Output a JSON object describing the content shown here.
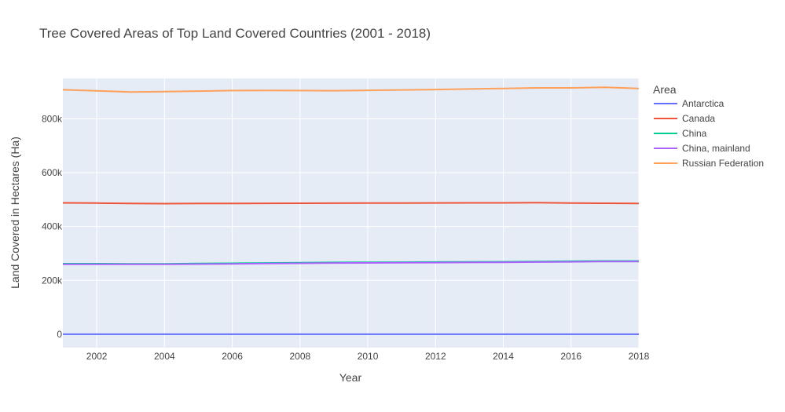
{
  "chart_data": {
    "type": "line",
    "title": "Tree Covered Areas of Top Land Covered Countries (2001 - 2018)",
    "xlabel": "Year",
    "ylabel": "Land Covered in Hectares (Ha)",
    "xlim": [
      2001,
      2018
    ],
    "ylim": [
      -50000,
      950000
    ],
    "x_ticks": [
      2002,
      2004,
      2006,
      2008,
      2010,
      2012,
      2014,
      2016,
      2018
    ],
    "y_ticks": [
      0,
      200000,
      400000,
      600000,
      800000
    ],
    "y_tick_labels": [
      "0",
      "200k",
      "400k",
      "600k",
      "800k"
    ],
    "grid": true,
    "legend_title": "Area",
    "legend_position": "right",
    "x": [
      2001,
      2002,
      2003,
      2004,
      2005,
      2006,
      2007,
      2008,
      2009,
      2010,
      2011,
      2012,
      2013,
      2014,
      2015,
      2016,
      2017,
      2018
    ],
    "series": [
      {
        "name": "Antarctica",
        "color": "#636efa",
        "values": [
          0,
          0,
          0,
          0,
          0,
          0,
          0,
          0,
          0,
          0,
          0,
          0,
          0,
          0,
          0,
          0,
          0,
          0
        ]
      },
      {
        "name": "Canada",
        "color": "#ef553b",
        "values": [
          488000,
          487000,
          486000,
          485000,
          485500,
          486000,
          486200,
          486500,
          486800,
          487000,
          487300,
          487500,
          487800,
          488000,
          488500,
          487000,
          486500,
          486000
        ]
      },
      {
        "name": "China",
        "color": "#00cc96",
        "values": [
          262000,
          262000,
          261500,
          261500,
          262500,
          263500,
          264500,
          265500,
          266500,
          267000,
          267500,
          268000,
          268500,
          269000,
          270000,
          271000,
          272000,
          272000
        ]
      },
      {
        "name": "China, mainland",
        "color": "#ab63fa",
        "values": [
          260000,
          260000,
          259500,
          259500,
          260500,
          261500,
          262500,
          263500,
          264500,
          265000,
          265500,
          266000,
          266500,
          267000,
          268000,
          269000,
          270000,
          270000
        ]
      },
      {
        "name": "Russian Federation",
        "color": "#ffa15a",
        "values": [
          908000,
          904000,
          900000,
          901000,
          903000,
          905000,
          905500,
          905000,
          904500,
          906000,
          907500,
          909000,
          911000,
          913000,
          915000,
          915000,
          917000,
          913000
        ]
      }
    ]
  }
}
